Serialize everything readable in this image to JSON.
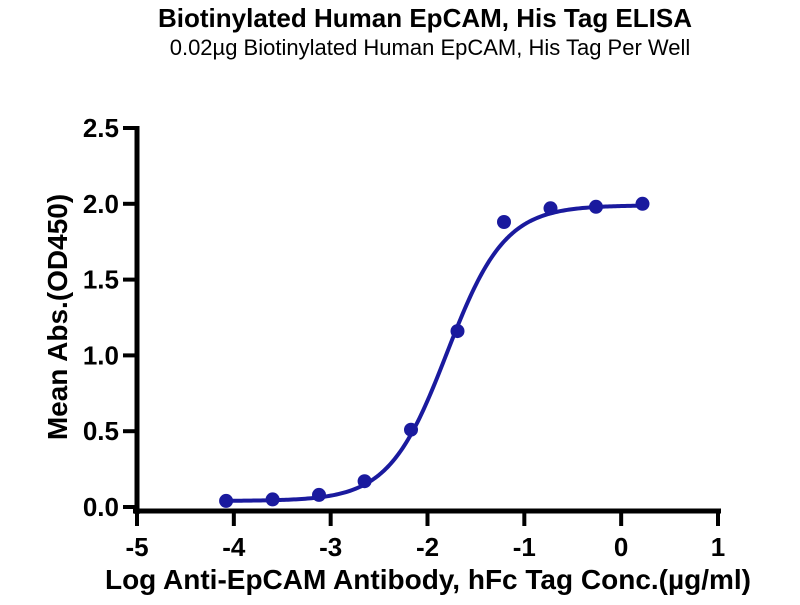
{
  "chart_data": {
    "type": "scatter",
    "title": "Biotinylated Human EpCAM, His Tag ELISA",
    "subtitle": "0.02µg Biotinylated Human EpCAM, His Tag Per Well",
    "xlabel": "Log Anti-EpCAM Antibody, hFc Tag Conc.(µg/ml)",
    "ylabel": "Mean Abs.(OD450)",
    "xlim": [
      -5,
      1
    ],
    "ylim": [
      0,
      2.5
    ],
    "xticks": [
      -5,
      -4,
      -3,
      -2,
      -1,
      0,
      1
    ],
    "ytick_labels": [
      "0.0",
      "0.5",
      "1.0",
      "1.5",
      "2.0",
      "2.5"
    ],
    "grid": false,
    "legend": "none",
    "axis_color": "#000000",
    "series": [
      {
        "name": "Anti-EpCAM Antibody, hFc Tag",
        "color": "#1a1a9e",
        "marker": "circle",
        "marker_radius": 7,
        "line_width": 4,
        "points": [
          {
            "x": -4.08,
            "y": 0.04
          },
          {
            "x": -3.6,
            "y": 0.05
          },
          {
            "x": -3.12,
            "y": 0.08
          },
          {
            "x": -2.65,
            "y": 0.17
          },
          {
            "x": -2.17,
            "y": 0.51
          },
          {
            "x": -1.69,
            "y": 1.16
          },
          {
            "x": -1.21,
            "y": 1.88
          },
          {
            "x": -0.73,
            "y": 1.97
          },
          {
            "x": -0.26,
            "y": 1.98
          },
          {
            "x": 0.22,
            "y": 2.0
          }
        ],
        "fit_curve": {
          "model": "4PL",
          "bottom": 0.04,
          "top": 1.99,
          "logEC50": -1.8,
          "hillslope": 1.45,
          "x_start": -4.08,
          "x_end": 0.22
        }
      }
    ]
  }
}
